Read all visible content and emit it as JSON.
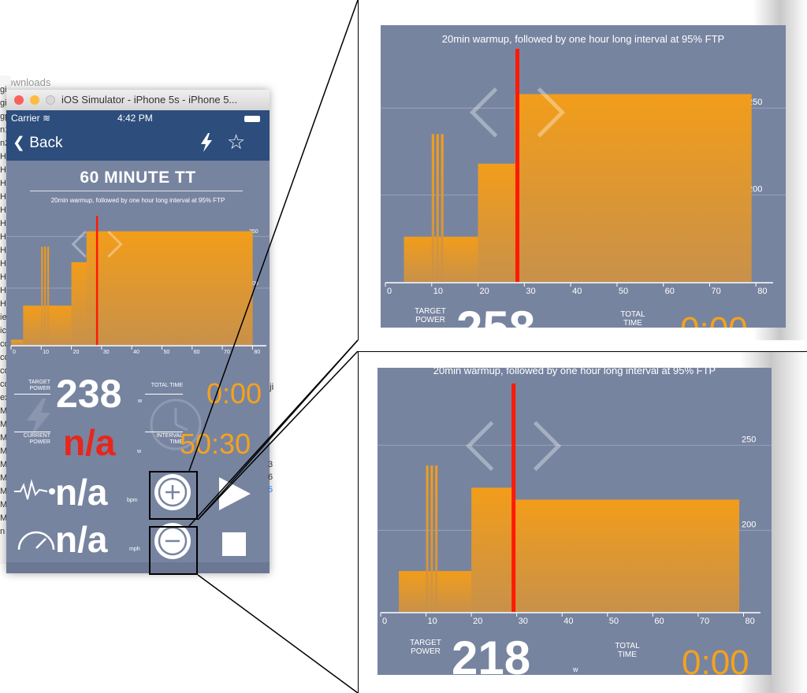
{
  "background": {
    "top_text": "Downloads",
    "sidebar_items": [
      "gi",
      "gi",
      "gp",
      "n1",
      "n2",
      "Ha",
      "HC",
      "HC",
      "HC",
      "HC",
      "HC",
      "Hu",
      "Hu",
      "Hu",
      "Hu",
      "Hu",
      "Hu",
      "ie",
      "ic",
      "co",
      "co",
      "co",
      "co",
      "ex",
      "M",
      "M",
      "M",
      "M",
      "M",
      "M",
      "M",
      "M",
      "M",
      "n"
    ],
    "side_glyphs": [
      "ji",
      "3",
      "6",
      "5"
    ]
  },
  "simulator": {
    "window_title": "iOS Simulator - iPhone 5s - iPhone 5...",
    "status": {
      "carrier": "Carrier",
      "time": "4:42 PM"
    },
    "nav": {
      "back_label": "Back"
    },
    "workout": {
      "title": "60 MINUTE TT",
      "description": "20min warmup, followed by one hour long interval at 95% FTP"
    },
    "metrics": {
      "target_power_label": "TARGET POWER",
      "target_power_value": "238",
      "target_power_unit": "w",
      "total_time_label": "TOTAL TIME",
      "total_time_value": "0:00",
      "current_power_label": "CURRENT POWER",
      "current_power_value": "n/a",
      "current_power_unit": "w",
      "interval_time_label": "INTERVAL TIME",
      "interval_time_value": "50:30",
      "heart_rate_value": "n/a",
      "heart_rate_unit": "bpm",
      "speed_value": "n/a",
      "speed_unit": "mph"
    }
  },
  "zoom_top": {
    "description": "20min warmup, followed by one hour long interval at 95% FTP",
    "target_power_label": "TARGET POWER",
    "target_power_value": "258",
    "total_time_label": "TOTAL TIME",
    "total_time_value": "0:00"
  },
  "zoom_bottom": {
    "description": "20min warmup, followed by one hour long interval at 95% FTP",
    "target_power_label": "TARGET POWER",
    "target_power_value": "218",
    "target_power_unit": "w",
    "total_time_label": "TOTAL TIME",
    "total_time_value": "0:00"
  },
  "colors": {
    "bar": "#f29d1a",
    "bar_fade": "#c8914a",
    "cursor": "#ff1a00",
    "panel_bg": "#7784a0",
    "nav_bg": "#2d4d7c",
    "current_power": "#e8261c"
  },
  "chart_data": [
    {
      "type": "area",
      "x_ticks": [
        0,
        10,
        20,
        30,
        40,
        50,
        60,
        70,
        80
      ],
      "y_ticks": [
        200,
        250
      ],
      "xlim": [
        0,
        82
      ],
      "ylim": [
        145,
        270
      ],
      "steps": [
        [
          0,
          4,
          150
        ],
        [
          4,
          10,
          183
        ],
        [
          10,
          10.5,
          240
        ],
        [
          10.5,
          11,
          183
        ],
        [
          11,
          11.5,
          240
        ],
        [
          11.5,
          12,
          183
        ],
        [
          12,
          12.5,
          240
        ],
        [
          12.5,
          20,
          183
        ],
        [
          20,
          25,
          225
        ],
        [
          25,
          80,
          255
        ]
      ],
      "cursor_x": 28.5
    },
    {
      "type": "area",
      "x_ticks": [
        0,
        10,
        20,
        30,
        40,
        50,
        60,
        70,
        80
      ],
      "y_ticks": [
        200,
        250
      ],
      "xlim": [
        0,
        82
      ],
      "ylim": [
        150,
        275
      ],
      "steps": [
        [
          0,
          4,
          150
        ],
        [
          4,
          10,
          176
        ],
        [
          10,
          10.5,
          235
        ],
        [
          10.5,
          11,
          176
        ],
        [
          11,
          11.5,
          235
        ],
        [
          11.5,
          12,
          176
        ],
        [
          12,
          12.5,
          235
        ],
        [
          12.5,
          20,
          176
        ],
        [
          20,
          28,
          218
        ],
        [
          28,
          79,
          258
        ],
        [
          79,
          82,
          150
        ]
      ],
      "cursor_x": 28.5
    },
    {
      "type": "area",
      "x_ticks": [
        0,
        10,
        20,
        30,
        40,
        50,
        60,
        70,
        80
      ],
      "y_ticks": [
        200,
        250
      ],
      "xlim": [
        0,
        82
      ],
      "ylim": [
        152,
        277
      ],
      "steps": [
        [
          0,
          4,
          150
        ],
        [
          4,
          10,
          176
        ],
        [
          10,
          10.5,
          238
        ],
        [
          10.5,
          11,
          176
        ],
        [
          11,
          11.5,
          238
        ],
        [
          11.5,
          12,
          176
        ],
        [
          12,
          12.5,
          238
        ],
        [
          12.5,
          20,
          176
        ],
        [
          20,
          29,
          225
        ],
        [
          29,
          79,
          218
        ],
        [
          79,
          82,
          150
        ]
      ],
      "cursor_x": 29.3
    }
  ]
}
